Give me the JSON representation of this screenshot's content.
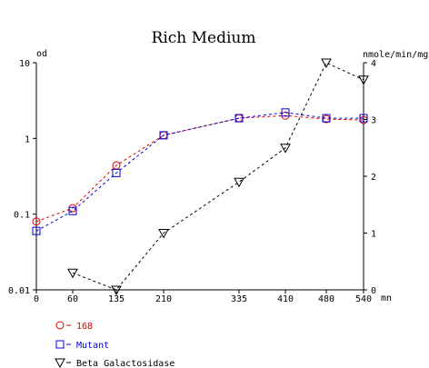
{
  "chart_data": {
    "type": "line",
    "title": "Rich Medium",
    "x_unit": "mn",
    "y_left_unit": "od",
    "y_right_unit": "nmole/min/mg",
    "x": [
      0,
      60,
      135,
      210,
      335,
      410,
      480,
      540
    ],
    "x_ticks": [
      "0",
      "60",
      "135",
      "210",
      "335",
      "410",
      "480",
      "540"
    ],
    "y_left_scale": "log",
    "y_left_range": [
      0.01,
      10
    ],
    "y_left_ticks": [
      "0.01",
      "0.1",
      "1",
      "10"
    ],
    "y_right_range": [
      0,
      4
    ],
    "y_right_ticks": [
      "0",
      "1",
      "2",
      "3",
      "4"
    ],
    "grid": false,
    "legend_position": "bottom-left",
    "series": [
      {
        "name": "168",
        "axis": "left",
        "marker": "circle",
        "color": "#dd0000",
        "points": [
          [
            0,
            0.08
          ],
          [
            60,
            0.12
          ],
          [
            135,
            0.44
          ],
          [
            210,
            1.1
          ],
          [
            335,
            1.85
          ],
          [
            410,
            2.0
          ],
          [
            480,
            1.8
          ],
          [
            540,
            1.75
          ]
        ]
      },
      {
        "name": "Mutant",
        "axis": "left",
        "marker": "square",
        "color": "#0000dd",
        "points": [
          [
            0,
            0.06
          ],
          [
            60,
            0.11
          ],
          [
            135,
            0.35
          ],
          [
            210,
            1.1
          ],
          [
            335,
            1.85
          ],
          [
            410,
            2.2
          ],
          [
            480,
            1.85
          ],
          [
            540,
            1.85
          ]
        ]
      },
      {
        "name": "Beta Galactosidase",
        "axis": "right",
        "marker": "triangle-down",
        "color": "#000000",
        "points": [
          [
            60,
            0.3
          ],
          [
            135,
            0.0
          ],
          [
            210,
            1.0
          ],
          [
            335,
            1.9
          ],
          [
            410,
            2.5
          ],
          [
            480,
            4.0
          ],
          [
            540,
            3.7
          ]
        ]
      }
    ]
  }
}
